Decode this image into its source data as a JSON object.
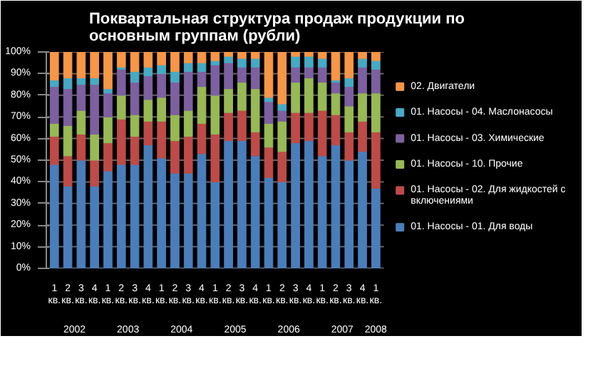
{
  "chart_data": {
    "type": "bar",
    "stacked": true,
    "title": "Поквартальная структура продаж продукции по основным группам (рубли)",
    "categories": [
      "1 кв.",
      "2 кв.",
      "3 кв.",
      "4 кв.",
      "1 кв.",
      "2 кв.",
      "3 кв.",
      "4 кв.",
      "1 кв.",
      "2 кв.",
      "3 кв.",
      "4 кв.",
      "1 кв.",
      "2 кв.",
      "3 кв.",
      "4 кв.",
      "1 кв.",
      "2 кв.",
      "3 кв.",
      "4 кв.",
      "1 кв.",
      "2 кв.",
      "3 кв.",
      "4 кв.",
      "1 кв."
    ],
    "annotations": [
      "2002",
      "2003",
      "2004",
      "2005",
      "2006",
      "2007",
      "2008"
    ],
    "series": [
      {
        "name": "01. Насосы - 01. Для воды",
        "color": "#4a7ebb",
        "values": [
          48,
          38,
          50,
          38,
          45,
          48,
          48,
          57,
          51,
          44,
          44,
          53,
          40,
          59,
          59,
          52,
          42,
          40,
          58,
          59,
          52,
          57,
          50,
          54,
          37
        ]
      },
      {
        "name": "01. Насосы - 02. Для жидкостей с включениями",
        "color": "#be4b48",
        "values": [
          13,
          14,
          12,
          12,
          13,
          21,
          13,
          11,
          17,
          15,
          17,
          14,
          22,
          13,
          14,
          11,
          14,
          14,
          14,
          13,
          21,
          14,
          13,
          14,
          26
        ]
      },
      {
        "name": "01. Насосы - 10. Прочие",
        "color": "#98b954",
        "values": [
          6,
          14,
          11,
          12,
          12,
          11,
          10,
          10,
          11,
          12,
          12,
          17,
          18,
          11,
          13,
          20,
          11,
          14,
          14,
          16,
          13,
          10,
          12,
          13,
          18
        ]
      },
      {
        "name": "01. Насосы - 03. Химические",
        "color": "#7d60a0",
        "values": [
          17,
          17,
          12,
          23,
          11,
          12,
          15,
          11,
          11,
          15,
          18,
          7,
          14,
          12,
          7,
          10,
          10,
          5,
          7,
          5,
          7,
          5,
          9,
          12,
          11
        ]
      },
      {
        "name": "01. Насосы - 04. Маслонасосы",
        "color": "#46aac5",
        "values": [
          3,
          5,
          3,
          3,
          2,
          1,
          5,
          4,
          4,
          5,
          4,
          4,
          2,
          3,
          4,
          4,
          2,
          3,
          5,
          5,
          4,
          1,
          4,
          4,
          4
        ]
      },
      {
        "name": "02. Двигатели",
        "color": "#f79646",
        "values": [
          13,
          12,
          12,
          12,
          17,
          7,
          9,
          7,
          6,
          9,
          5,
          5,
          4,
          2,
          3,
          3,
          21,
          24,
          2,
          2,
          3,
          13,
          12,
          3,
          4
        ]
      }
    ],
    "ylim": [
      0,
      100
    ],
    "yticks": [
      {
        "value": 0,
        "label": "0%"
      },
      {
        "value": 10,
        "label": "10%"
      },
      {
        "value": 20,
        "label": "20%"
      },
      {
        "value": 30,
        "label": "30%"
      },
      {
        "value": 40,
        "label": "40%"
      },
      {
        "value": 50,
        "label": "50%"
      },
      {
        "value": 60,
        "label": "60%"
      },
      {
        "value": 70,
        "label": "70%"
      },
      {
        "value": 80,
        "label": "80%"
      },
      {
        "value": 90,
        "label": "90%"
      },
      {
        "value": 100,
        "label": "100%"
      }
    ],
    "grid": "y",
    "legend": "right"
  }
}
